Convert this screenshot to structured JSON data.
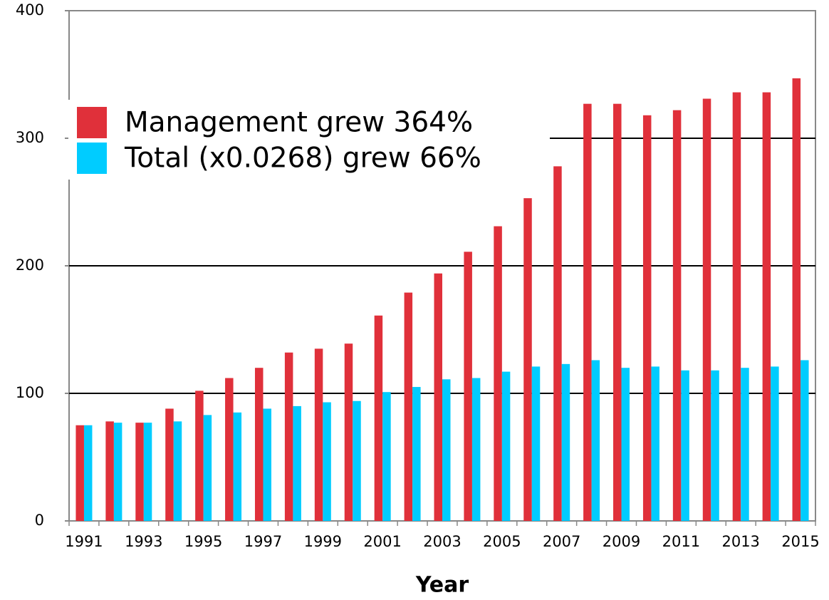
{
  "chart_data": {
    "type": "bar",
    "xlabel": "Year",
    "categories": [
      "1991",
      null,
      "1993",
      null,
      "1995",
      null,
      "1997",
      null,
      "1999",
      null,
      "2001",
      null,
      "2003",
      null,
      "2005",
      null,
      "2007",
      null,
      "2009",
      null,
      "2011",
      null,
      "2013",
      null,
      "2015"
    ],
    "series": [
      {
        "name": "Management grew 364%",
        "color": "#e0303a",
        "values": [
          75,
          78,
          77,
          88,
          102,
          112,
          120,
          132,
          135,
          139,
          161,
          179,
          194,
          211,
          231,
          253,
          278,
          327,
          327,
          318,
          322,
          331,
          336,
          336,
          347
        ]
      },
      {
        "name": "Total (x0.0268) grew 66%",
        "color": "#00ccff",
        "values": [
          75,
          77,
          77,
          78,
          83,
          85,
          88,
          90,
          93,
          94,
          101,
          105,
          111,
          112,
          117,
          121,
          123,
          126,
          120,
          121,
          118,
          118,
          120,
          121,
          126
        ]
      }
    ],
    "ylim": [
      0,
      400
    ],
    "yticks": [
      0,
      100,
      200,
      300,
      400
    ],
    "grid": true
  }
}
